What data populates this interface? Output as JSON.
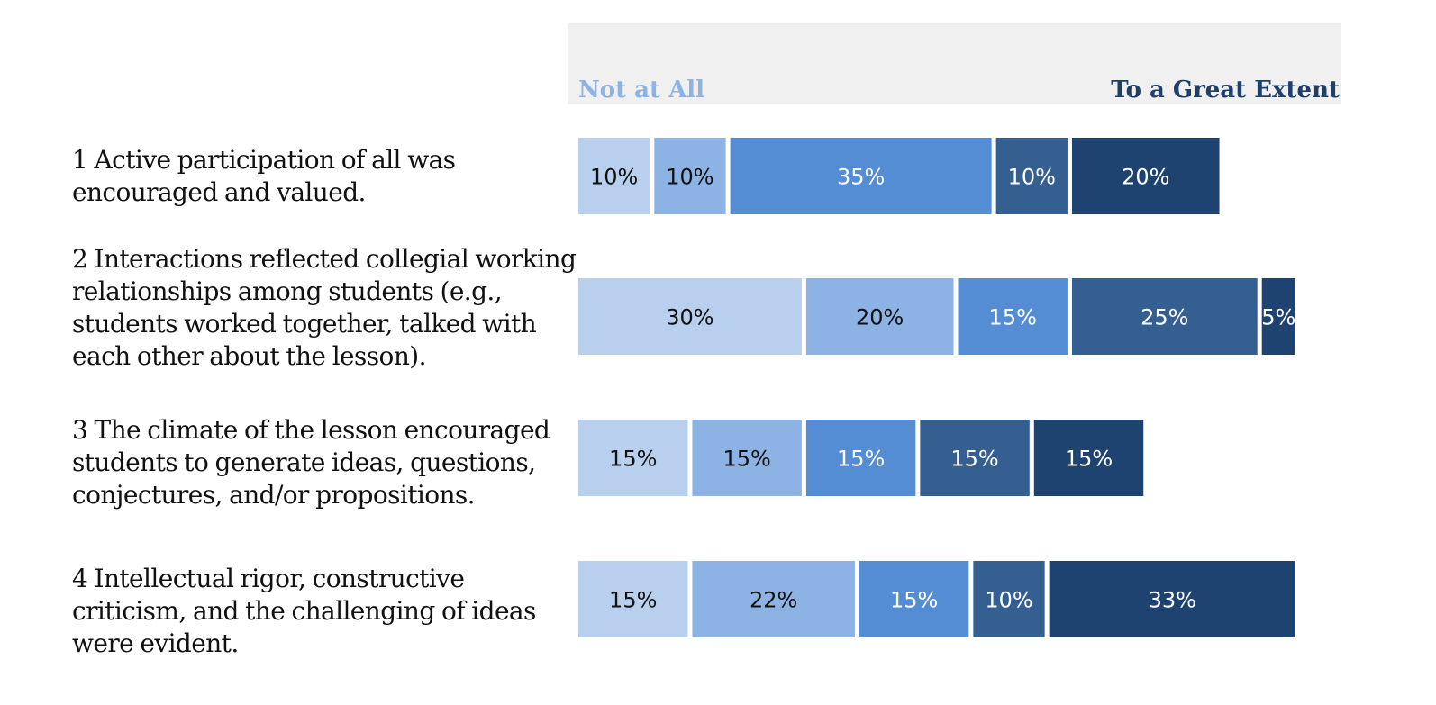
{
  "scale": {
    "low_label": "Not at All",
    "high_label": "To a Great Extent",
    "low_color": "#8db2e4",
    "high_color": "#1f3f6b"
  },
  "chart_data": {
    "type": "bar",
    "orientation": "horizontal",
    "stacked": true,
    "categories": [
      "1 Active participation of all was encouraged and valued.",
      "2 Interactions reflected collegial working relationships among students (e.g., students worked together, talked with each other about the lesson).",
      "3 The climate of the lesson encouraged students to generate ideas, questions, conjectures, and/or propositions.",
      "4 Intellectual rigor, constructive criticism, and the challenging of ideas were evident."
    ],
    "series": [
      {
        "values": [
          10,
          30,
          15,
          15
        ],
        "color": "#b9cfee",
        "label_color": "#111111"
      },
      {
        "values": [
          10,
          20,
          15,
          22
        ],
        "color": "#8db2e4",
        "label_color": "#111111"
      },
      {
        "values": [
          35,
          15,
          15,
          15
        ],
        "color": "#548dd4",
        "label_color": "#ffffff"
      },
      {
        "values": [
          10,
          25,
          15,
          10
        ],
        "color": "#355f91",
        "label_color": "#ffffff"
      },
      {
        "values": [
          20,
          5,
          15,
          33
        ],
        "color": "#1f4370",
        "label_color": "#ffffff"
      }
    ],
    "data_labels": [
      [
        "10%",
        "10%",
        "35%",
        "10%",
        "20%"
      ],
      [
        "30%",
        "20%",
        "15%",
        "25%",
        "5%"
      ],
      [
        "15%",
        "15%",
        "15%",
        "15%",
        "15%"
      ],
      [
        "15%",
        "22%",
        "15%",
        "10%",
        "33%"
      ]
    ],
    "xlim": [
      0,
      100
    ],
    "legend": "none",
    "grid": false
  }
}
